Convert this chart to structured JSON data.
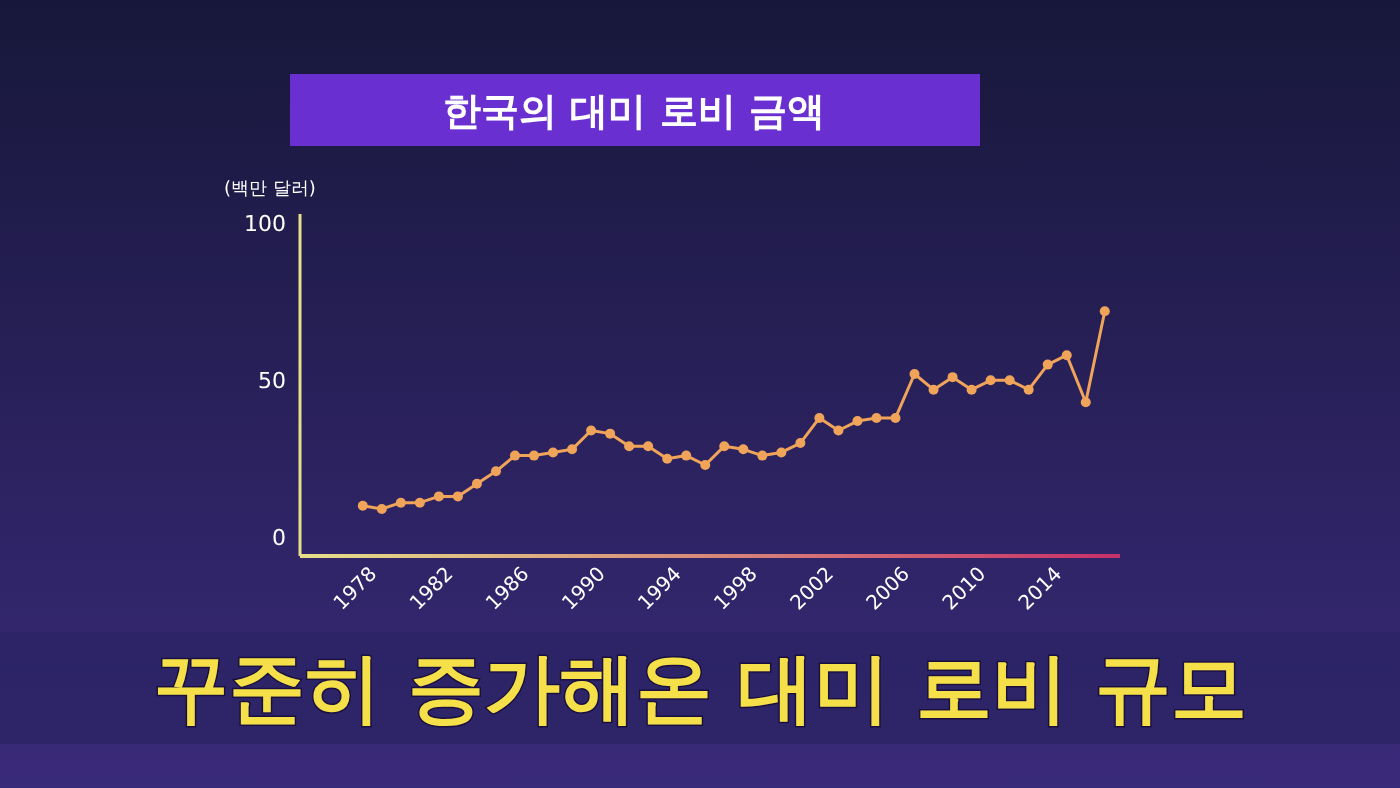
{
  "chart_data": {
    "type": "line",
    "title": "한국의 대미 로비 금액",
    "ylabel": "(백만 달러)",
    "x": [
      1978,
      1979,
      1980,
      1981,
      1982,
      1983,
      1984,
      1985,
      1986,
      1987,
      1988,
      1989,
      1990,
      1991,
      1992,
      1993,
      1994,
      1995,
      1996,
      1997,
      1998,
      1999,
      2000,
      2001,
      2002,
      2003,
      2004,
      2005,
      2006,
      2007,
      2008,
      2009,
      2010,
      2011,
      2012,
      2013,
      2014,
      2015,
      2016,
      2017
    ],
    "series": [
      {
        "color": "#f0a45a",
        "values": [
          10,
          9,
          11,
          11,
          13,
          13,
          17,
          21,
          26,
          26,
          27,
          28,
          34,
          33,
          29,
          29,
          25,
          26,
          23,
          29,
          28,
          26,
          27,
          30,
          38,
          34,
          37,
          38,
          38,
          52,
          47,
          51,
          47,
          50,
          50,
          47,
          55,
          58,
          43,
          72
        ]
      }
    ],
    "xlim": [
      1974.7,
      2017.8
    ],
    "xticks": [
      1978,
      1982,
      1986,
      1990,
      1994,
      1998,
      2002,
      2006,
      2010,
      2014
    ],
    "ylim": [
      -6,
      103
    ],
    "yticks": [
      0,
      50,
      100
    ],
    "marker": "circle",
    "line_style": "solid",
    "grid": false,
    "annotations": [
      "꾸준히 증가해온 대미 로비 규모"
    ]
  }
}
